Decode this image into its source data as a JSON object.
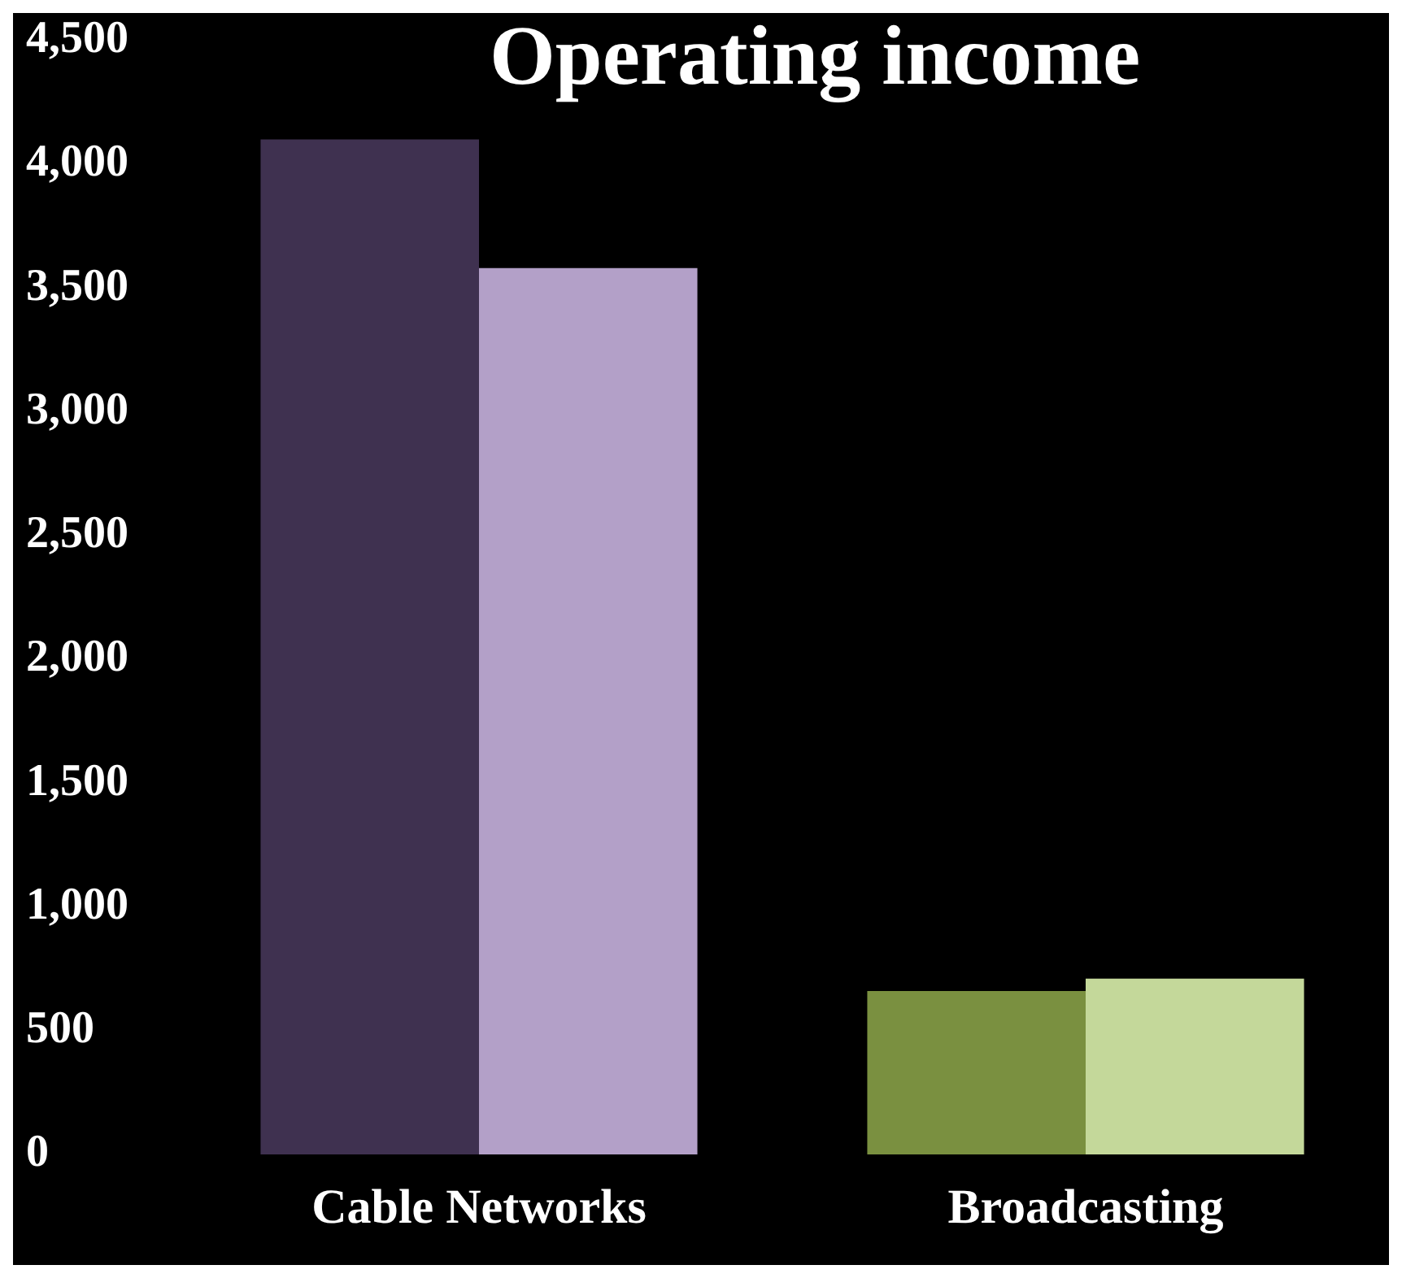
{
  "chart_data": {
    "type": "bar",
    "title": "Operating income",
    "categories": [
      "Cable Networks",
      "Broadcasting"
    ],
    "series": [
      {
        "colors": [
          "#3f3150",
          "#7a9040"
        ],
        "values": [
          4100,
          660
        ]
      },
      {
        "colors": [
          "#b3a0c8",
          "#c4d89a"
        ],
        "values": [
          3580,
          710
        ]
      }
    ],
    "ylim": [
      0,
      4500
    ],
    "yticks": [
      0,
      500,
      {
        "value": 1000,
        "label": "1,000"
      },
      {
        "value": 1500,
        "label": "1,500"
      },
      {
        "value": 2000,
        "label": "2,000"
      },
      {
        "value": 2500,
        "label": "2,500"
      },
      {
        "value": 3000,
        "label": "3,000"
      },
      {
        "value": 3500,
        "label": "3,500"
      },
      {
        "value": 4000,
        "label": "4,000"
      },
      {
        "value": 4500,
        "label": "4,500"
      }
    ],
    "grid": false,
    "legend": false
  }
}
